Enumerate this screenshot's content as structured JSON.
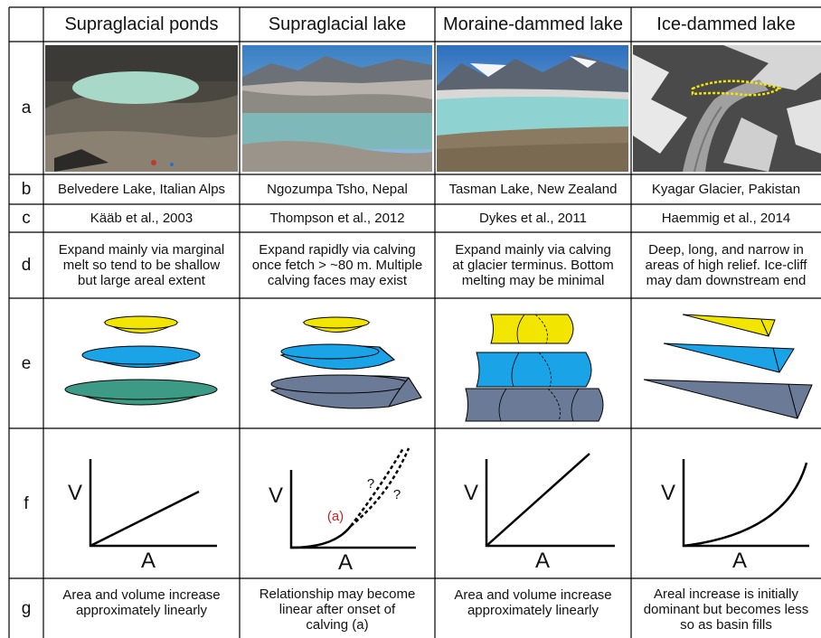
{
  "columns": [
    {
      "header": "Supraglacial ponds",
      "b": "Belvedere Lake, Italian Alps",
      "c": "Kääb et al., 2003",
      "d": "Expand mainly via marginal\nmelt so tend to be shallow\nbut large areal extent",
      "f_axis_v": "V",
      "f_axis_a": "A",
      "g": "Area and volume increase\napproximately linearly"
    },
    {
      "header": "Supraglacial lake",
      "b": "Ngozumpa Tsho, Nepal",
      "c": "Thompson et al., 2012",
      "d": "Expand rapidly via calving\nonce fetch > ~80 m. Multiple\ncalving faces may exist",
      "f_axis_v": "V",
      "f_axis_a": "A",
      "f_label_onset": "(a)",
      "f_q1": "?",
      "f_q2": "?",
      "g": "Relationship may become\nlinear after onset of\ncalving (a)"
    },
    {
      "header": "Moraine-dammed lake",
      "b": "Tasman Lake, New Zealand",
      "c": "Dykes et al., 2011",
      "d": "Expand mainly via calving\nat glacier terminus. Bottom\nmelting may be minimal",
      "f_axis_v": "V",
      "f_axis_a": "A",
      "g": "Area and volume increase\napproximately linearly"
    },
    {
      "header": "Ice-dammed lake",
      "b": "Kyagar Glacier, Pakistan",
      "c": "Haemmig et al., 2014",
      "d": "Deep, long, and narrow in\nareas of high relief. Ice-cliff\nmay dam downstream end",
      "f_axis_v": "V",
      "f_axis_a": "A",
      "g": "Areal increase is initially\ndominant but becomes less\nso as basin fills"
    }
  ],
  "row_labels": [
    "a",
    "b",
    "c",
    "d",
    "e",
    "f",
    "g"
  ],
  "colors": {
    "yellow": "#f2e600",
    "blue": "#1aa3e6",
    "green": "#3d9b85",
    "slate": "#6b7a96",
    "onset_red": "#d42020",
    "lake_water": "#8fd0c8"
  }
}
